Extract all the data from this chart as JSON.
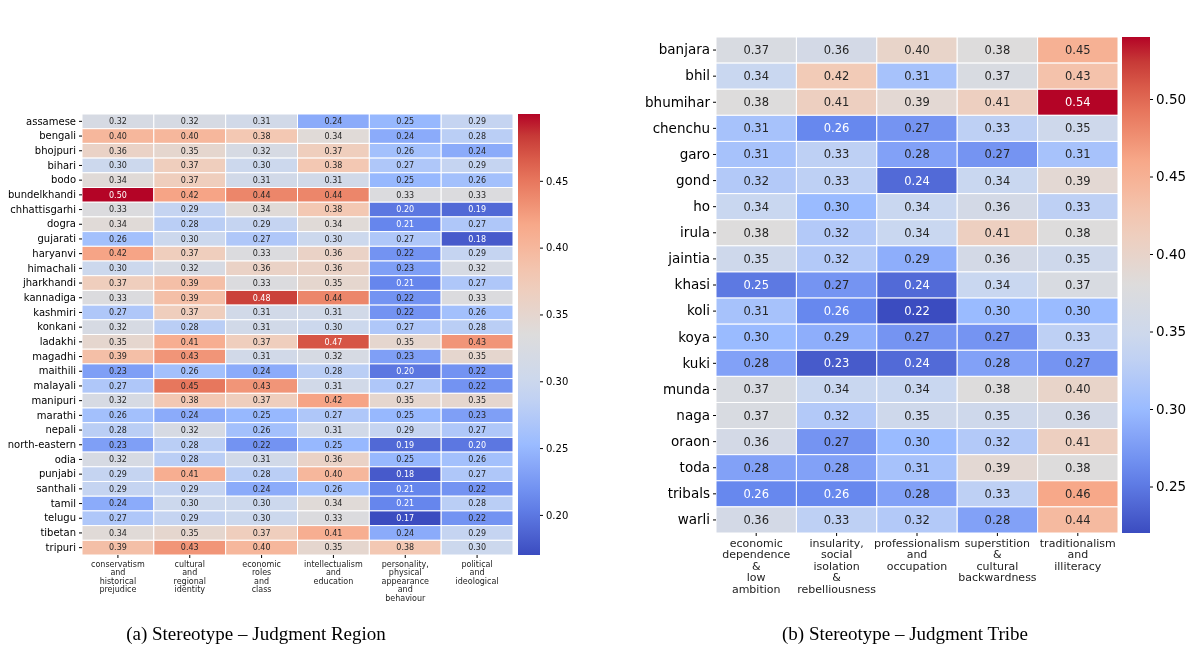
{
  "chart_data": [
    {
      "type": "heatmap",
      "annotations": [
        "(a) Stereotype – Judgment Region"
      ],
      "categories": [
        "conservatism and historical prejudice",
        "cultural and regional identity",
        "economic roles and class",
        "intellectualism and education",
        "personality, physical appearance and behaviour",
        "political and ideological"
      ],
      "y_categories": [
        "assamese",
        "bengali",
        "bhojpuri",
        "bihari",
        "bodo",
        "bundelkhandi",
        "chhattisgarhi",
        "dogra",
        "gujarati",
        "haryanvi",
        "himachali",
        "jharkhandi",
        "kannadiga",
        "kashmiri",
        "konkani",
        "ladakhi",
        "magadhi",
        "maithili",
        "malayali",
        "manipuri",
        "marathi",
        "nepali",
        "north-eastern",
        "odia",
        "punjabi",
        "santhali",
        "tamil",
        "telugu",
        "tibetan",
        "tripuri"
      ],
      "cells": [
        [
          0.32,
          0.32,
          0.31,
          0.24,
          0.25,
          0.29
        ],
        [
          0.4,
          0.4,
          0.38,
          0.34,
          0.24,
          0.28
        ],
        [
          0.36,
          0.35,
          0.32,
          0.37,
          0.26,
          0.24
        ],
        [
          0.3,
          0.37,
          0.3,
          0.38,
          0.27,
          0.29
        ],
        [
          0.34,
          0.37,
          0.31,
          0.31,
          0.25,
          0.26
        ],
        [
          0.5,
          0.42,
          0.44,
          0.44,
          0.33,
          0.33
        ],
        [
          0.33,
          0.29,
          0.34,
          0.38,
          0.2,
          0.19
        ],
        [
          0.34,
          0.28,
          0.29,
          0.34,
          0.21,
          0.27
        ],
        [
          0.26,
          0.3,
          0.27,
          0.3,
          0.27,
          0.18
        ],
        [
          0.42,
          0.37,
          0.33,
          0.36,
          0.22,
          0.29
        ],
        [
          0.3,
          0.32,
          0.36,
          0.36,
          0.23,
          0.32
        ],
        [
          0.37,
          0.39,
          0.33,
          0.35,
          0.21,
          0.27
        ],
        [
          0.33,
          0.39,
          0.48,
          0.44,
          0.22,
          0.33
        ],
        [
          0.27,
          0.37,
          0.31,
          0.31,
          0.22,
          0.26
        ],
        [
          0.32,
          0.28,
          0.31,
          0.3,
          0.27,
          0.28
        ],
        [
          0.35,
          0.41,
          0.37,
          0.47,
          0.35,
          0.43
        ],
        [
          0.39,
          0.43,
          0.31,
          0.32,
          0.23,
          0.35
        ],
        [
          0.23,
          0.26,
          0.24,
          0.28,
          0.2,
          0.22
        ],
        [
          0.27,
          0.45,
          0.43,
          0.31,
          0.27,
          0.22
        ],
        [
          0.32,
          0.38,
          0.37,
          0.42,
          0.35,
          0.35
        ],
        [
          0.26,
          0.24,
          0.25,
          0.27,
          0.25,
          0.23
        ],
        [
          0.28,
          0.32,
          0.26,
          0.31,
          0.29,
          0.27
        ],
        [
          0.23,
          0.28,
          0.22,
          0.25,
          0.19,
          0.2
        ],
        [
          0.32,
          0.28,
          0.31,
          0.36,
          0.25,
          0.26
        ],
        [
          0.29,
          0.41,
          0.28,
          0.4,
          0.18,
          0.27
        ],
        [
          0.29,
          0.29,
          0.24,
          0.26,
          0.21,
          0.22
        ],
        [
          0.24,
          0.3,
          0.3,
          0.34,
          0.21,
          0.28
        ],
        [
          0.27,
          0.29,
          0.3,
          0.33,
          0.17,
          0.22
        ],
        [
          0.34,
          0.35,
          0.37,
          0.41,
          0.24,
          0.29
        ],
        [
          0.39,
          0.43,
          0.4,
          0.35,
          0.38,
          0.3
        ]
      ],
      "cell_labels": [
        [
          "0.32",
          "0.32",
          "0.31",
          "0.24",
          "0.25",
          "0.29"
        ],
        [
          "0.40",
          "0.40",
          "0.38",
          "0.34",
          "0.24",
          "0.28"
        ],
        [
          "0.36",
          "0.35",
          "0.32",
          "0.37",
          "0.26",
          "0.24"
        ],
        [
          "0.30",
          "0.37",
          "0.30",
          "0.38",
          "0.27",
          "0.29"
        ],
        [
          "0.34",
          "0.37",
          "0.31",
          "0.31",
          "0.25",
          "0.26"
        ],
        [
          "0.50",
          "0.42",
          "0.44",
          "0.44",
          "0.33",
          "0.33"
        ],
        [
          "0.33",
          "0.29",
          "0.34",
          "0.38",
          "0.20",
          "0.19"
        ],
        [
          "0.34",
          "0.28",
          "0.29",
          "0.34",
          "0.21",
          "0.27"
        ],
        [
          "0.26",
          "0.30",
          "0.27",
          "0.30",
          "0.27",
          "0.18"
        ],
        [
          "0.42",
          "0.37",
          "0.33",
          "0.36",
          "0.22",
          "0.29"
        ],
        [
          "0.30",
          "0.32",
          "0.36",
          "0.36",
          "0.23",
          "0.32"
        ],
        [
          "0.37",
          "0.39",
          "0.33",
          "0.35",
          "0.21",
          "0.27"
        ],
        [
          "0.33",
          "0.39",
          "0.48",
          "0.44",
          "0.22",
          "0.33"
        ],
        [
          "0.27",
          "0.37",
          "0.31",
          "0.31",
          "0.22",
          "0.26"
        ],
        [
          "0.32",
          "0.28",
          "0.31",
          "0.30",
          "0.27",
          "0.28"
        ],
        [
          "0.35",
          "0.41",
          "0.37",
          "0.47",
          "0.35",
          "0.43"
        ],
        [
          "0.39",
          "0.43",
          "0.31",
          "0.32",
          "0.23",
          "0.35"
        ],
        [
          "0.23",
          "0.26",
          "0.24",
          "0.28",
          "0.20",
          "0.22"
        ],
        [
          "0.27",
          "0.45",
          "0.43",
          "0.31",
          "0.27",
          "0.22"
        ],
        [
          "0.32",
          "0.38",
          "0.37",
          "0.42",
          "0.35",
          "0.35"
        ],
        [
          "0.26",
          "0.24",
          "0.25",
          "0.27",
          "0.25",
          "0.23"
        ],
        [
          "0.28",
          "0.32",
          "0.26",
          "0.31",
          "0.29",
          "0.27"
        ],
        [
          "0.23",
          "0.28",
          "0.22",
          "0.25",
          "0.19",
          "0.20"
        ],
        [
          "0.32",
          "0.28",
          "0.31",
          "0.36",
          "0.25",
          "0.26"
        ],
        [
          "0.29",
          "0.41",
          "0.28",
          "0.40",
          "0.18",
          "0.27"
        ],
        [
          "0.29",
          "0.29",
          "0.24",
          "0.26",
          "0.21",
          "0.22"
        ],
        [
          "0.24",
          "0.30",
          "0.30",
          "0.34",
          "0.21",
          "0.28"
        ],
        [
          "0.27",
          "0.29",
          "0.30",
          "0.33",
          "0.17",
          "0.22"
        ],
        [
          "0.34",
          "0.35",
          "0.37",
          "0.41",
          "0.24",
          "0.29"
        ],
        [
          "0.39",
          "0.43",
          "0.40",
          "0.35",
          "0.38",
          "0.30"
        ]
      ],
      "clim": [
        0.17,
        0.5
      ],
      "cticks": [
        {
          "value": 0.2,
          "label": "0.20"
        },
        0.25,
        {
          "value": 0.3,
          "label": "0.30"
        },
        0.35,
        {
          "value": 0.4,
          "label": "0.40"
        },
        0.45
      ],
      "data_labels": true
    },
    {
      "type": "heatmap",
      "annotations": [
        "(b) Stereotype – Judgment Tribe"
      ],
      "categories": [
        "economic dependence & low ambition",
        "insularity, social isolation & rebelliousness",
        "professionalism and occupation",
        "superstition & cultural backwardness",
        "traditionalism and illiteracy"
      ],
      "y_categories": [
        "banjara",
        "bhil",
        "bhumihar",
        "chenchu",
        "garo",
        "gond",
        "ho",
        "irula",
        "jaintia",
        "khasi",
        "koli",
        "koya",
        "kuki",
        "munda",
        "naga",
        "oraon",
        "toda",
        "tribals",
        "warli"
      ],
      "cells": [
        [
          0.37,
          0.36,
          0.4,
          0.38,
          0.45
        ],
        [
          0.34,
          0.42,
          0.31,
          0.37,
          0.43
        ],
        [
          0.38,
          0.41,
          0.39,
          0.41,
          0.54
        ],
        [
          0.31,
          0.26,
          0.27,
          0.33,
          0.35
        ],
        [
          0.31,
          0.33,
          0.28,
          0.27,
          0.31
        ],
        [
          0.32,
          0.33,
          0.24,
          0.34,
          0.39
        ],
        [
          0.34,
          0.3,
          0.34,
          0.36,
          0.33
        ],
        [
          0.38,
          0.32,
          0.34,
          0.41,
          0.38
        ],
        [
          0.35,
          0.32,
          0.29,
          0.36,
          0.35
        ],
        [
          0.25,
          0.27,
          0.24,
          0.34,
          0.37
        ],
        [
          0.31,
          0.26,
          0.22,
          0.3,
          0.3
        ],
        [
          0.3,
          0.29,
          0.27,
          0.27,
          0.33
        ],
        [
          0.28,
          0.23,
          0.24,
          0.28,
          0.27
        ],
        [
          0.37,
          0.34,
          0.34,
          0.38,
          0.4
        ],
        [
          0.37,
          0.32,
          0.35,
          0.35,
          0.36
        ],
        [
          0.36,
          0.27,
          0.3,
          0.32,
          0.41
        ],
        [
          0.28,
          0.28,
          0.31,
          0.39,
          0.38
        ],
        [
          0.26,
          0.26,
          0.28,
          0.33,
          0.46
        ],
        [
          0.36,
          0.33,
          0.32,
          0.28,
          0.44
        ]
      ],
      "cell_labels": [
        [
          "0.37",
          "0.36",
          "0.40",
          "0.38",
          "0.45"
        ],
        [
          "0.34",
          "0.42",
          "0.31",
          "0.37",
          "0.43"
        ],
        [
          "0.38",
          "0.41",
          "0.39",
          "0.41",
          "0.54"
        ],
        [
          "0.31",
          "0.26",
          "0.27",
          "0.33",
          "0.35"
        ],
        [
          "0.31",
          "0.33",
          "0.28",
          "0.27",
          "0.31"
        ],
        [
          "0.32",
          "0.33",
          "0.24",
          "0.34",
          "0.39"
        ],
        [
          "0.34",
          "0.30",
          "0.34",
          "0.36",
          "0.33"
        ],
        [
          "0.38",
          "0.32",
          "0.34",
          "0.41",
          "0.38"
        ],
        [
          "0.35",
          "0.32",
          "0.29",
          "0.36",
          "0.35"
        ],
        [
          "0.25",
          "0.27",
          "0.24",
          "0.34",
          "0.37"
        ],
        [
          "0.31",
          "0.26",
          "0.22",
          "0.30",
          "0.30"
        ],
        [
          "0.30",
          "0.29",
          "0.27",
          "0.27",
          "0.33"
        ],
        [
          "0.28",
          "0.23",
          "0.24",
          "0.28",
          "0.27"
        ],
        [
          "0.37",
          "0.34",
          "0.34",
          "0.38",
          "0.40"
        ],
        [
          "0.37",
          "0.32",
          "0.35",
          "0.35",
          "0.36"
        ],
        [
          "0.36",
          "0.27",
          "0.30",
          "0.32",
          "0.41"
        ],
        [
          "0.28",
          "0.28",
          "0.31",
          "0.39",
          "0.38"
        ],
        [
          "0.26",
          "0.26",
          "0.28",
          "0.33",
          "0.46"
        ],
        [
          "0.36",
          "0.33",
          "0.32",
          "0.28",
          "0.44"
        ]
      ],
      "clim": [
        0.22,
        0.54
      ],
      "cticks": [
        0.25,
        {
          "value": 0.3,
          "label": "0.30"
        },
        0.35,
        {
          "value": 0.4,
          "label": "0.40"
        },
        0.45,
        {
          "value": 0.5,
          "label": "0.50"
        }
      ],
      "data_labels": true
    }
  ]
}
